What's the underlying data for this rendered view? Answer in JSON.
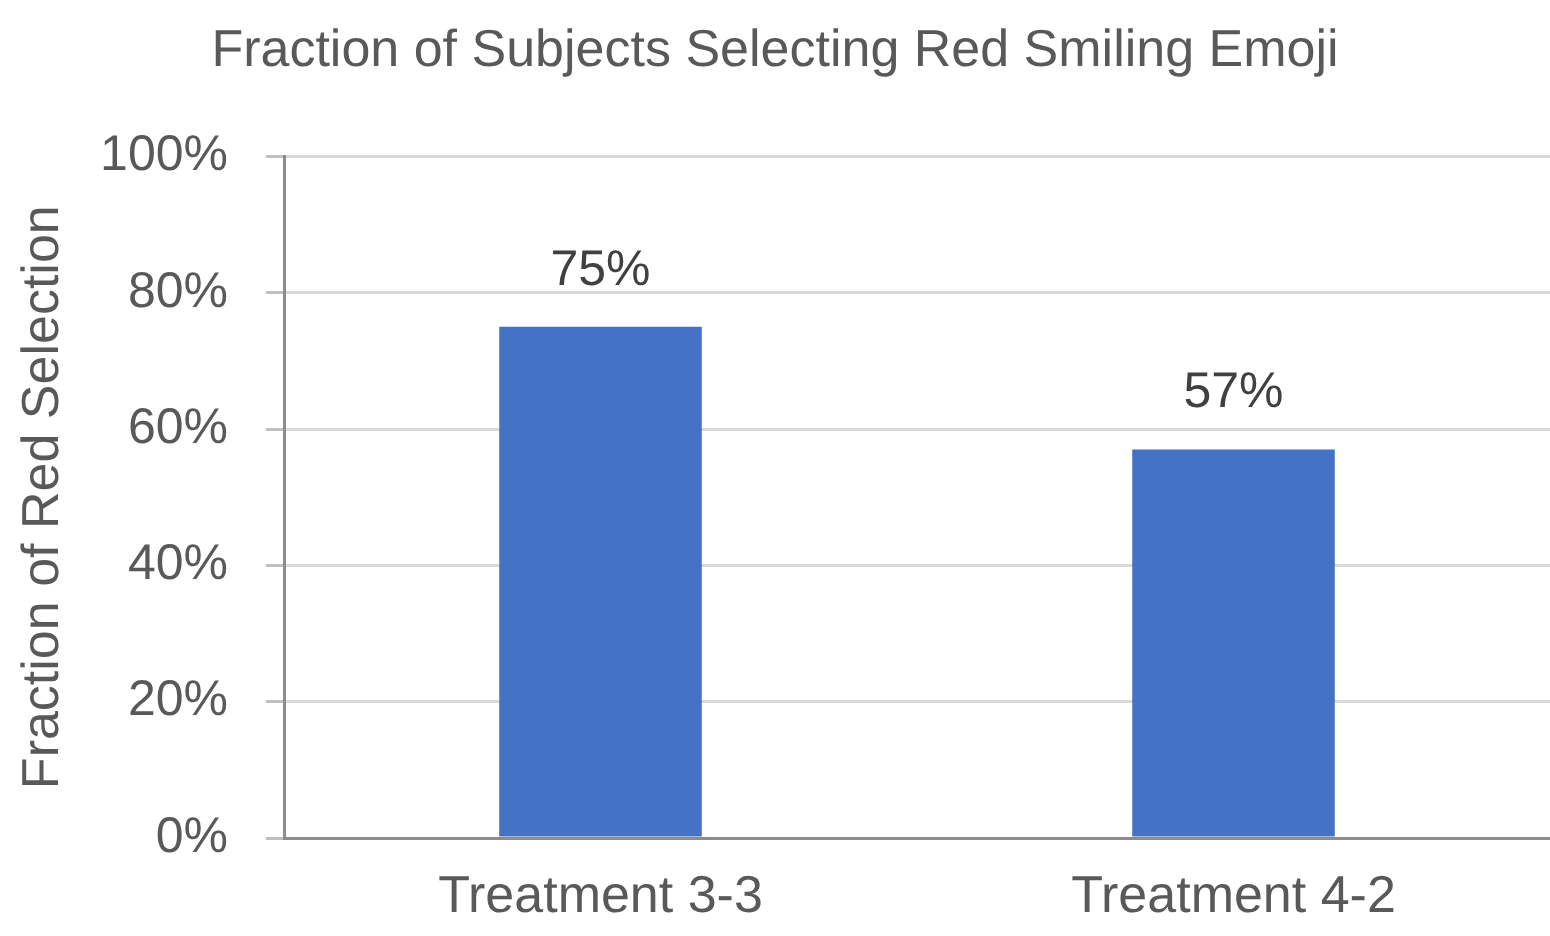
{
  "chart_data": {
    "type": "bar",
    "title": "Fraction of Subjects Selecting Red Smiling Emoji",
    "ylabel": "Fraction of Red Selection",
    "categories": [
      "Treatment 3-3",
      "Treatment 4-2"
    ],
    "values": [
      75,
      57
    ],
    "value_labels": [
      "75%",
      "57%"
    ],
    "color": "#4472c4",
    "ylim": [
      0,
      100
    ],
    "yticks": [
      {
        "value": 0,
        "label": "0%"
      },
      {
        "value": 20,
        "label": "20%"
      },
      {
        "value": 40,
        "label": "40%"
      },
      {
        "value": 60,
        "label": "60%"
      },
      {
        "value": 80,
        "label": "80%"
      },
      {
        "value": 100,
        "label": "100%"
      }
    ],
    "grid": "y"
  }
}
